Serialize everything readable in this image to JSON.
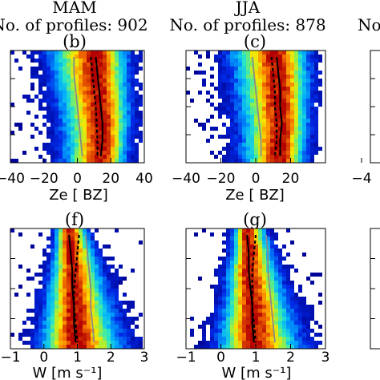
{
  "panel_titles": {
    "mam_season": "MAM",
    "mam_profiles": "No. of profiles: 902",
    "jja_season": "JJA",
    "jja_profiles": "No. of profiles: 878",
    "right_fragment": "No"
  },
  "chart_data": [
    {
      "type": "heatmap",
      "panel_label": "(b)",
      "xlabel": "Ze [ BZ]",
      "xlim": [
        -40,
        40
      ],
      "xticks": [
        "−40",
        "−20",
        "0",
        "20",
        "40"
      ],
      "lines": [
        {
          "style": "solid black",
          "x": [
            11,
            12,
            13,
            14,
            15,
            15,
            14
          ]
        },
        {
          "style": "dashed black",
          "x": [
            8,
            9,
            10,
            11,
            11.5,
            12,
            12
          ]
        },
        {
          "style": "solid grey",
          "x": [
            -2,
            -2,
            -1,
            0,
            1,
            2,
            3
          ]
        }
      ]
    },
    {
      "type": "heatmap",
      "panel_label": "(c)",
      "xlabel": "Ze [ BZ]",
      "xlim": [
        -40,
        40
      ],
      "xticks": [
        "−40",
        "−20",
        "0",
        "20"
      ],
      "lines": [
        {
          "style": "solid black",
          "x": [
            12,
            13,
            14,
            14,
            15,
            14,
            14
          ]
        },
        {
          "style": "dashed black",
          "x": [
            9,
            10,
            11,
            11,
            12,
            12,
            11
          ]
        },
        {
          "style": "solid grey",
          "x": [
            -2,
            -1,
            0,
            1,
            2,
            3,
            3
          ]
        }
      ]
    },
    {
      "type": "heatmap",
      "panel_label": "",
      "xlabel": "",
      "xlim": [
        -40,
        40
      ],
      "xticks": [
        "−4"
      ]
    },
    {
      "type": "heatmap",
      "panel_label": "(f)",
      "xlabel": "W [m s⁻¹]",
      "xlim": [
        -1,
        3
      ],
      "xticks": [
        "−1",
        "0",
        "1",
        "2",
        "3"
      ],
      "lines": [
        {
          "style": "solid black",
          "x": [
            0.75,
            0.8,
            0.85,
            0.85,
            0.9,
            0.9,
            0.95
          ]
        },
        {
          "style": "dashed black",
          "x": [
            1.05,
            1.0,
            0.95,
            0.9,
            0.9,
            0.95,
            1.0
          ]
        },
        {
          "style": "solid grey",
          "x": [
            1.25,
            1.3,
            1.35,
            1.4,
            1.4,
            1.45,
            1.5
          ]
        }
      ]
    },
    {
      "type": "heatmap",
      "panel_label": "(g)",
      "xlabel": "W [m s⁻¹]",
      "xlim": [
        -1,
        3
      ],
      "xticks": [
        "−1",
        "0",
        "1",
        "2",
        "3"
      ],
      "lines": [
        {
          "style": "solid black",
          "x": [
            0.75,
            0.8,
            0.8,
            0.85,
            0.9,
            0.9,
            0.95
          ]
        },
        {
          "style": "dashed black",
          "x": [
            1.0,
            0.95,
            0.9,
            0.9,
            0.9,
            0.95,
            1.0
          ]
        },
        {
          "style": "solid grey",
          "x": [
            1.3,
            1.35,
            1.35,
            1.4,
            1.45,
            1.5,
            1.55
          ]
        }
      ]
    },
    {
      "type": "heatmap",
      "panel_label": "",
      "xlabel": "",
      "xlim": [
        -1,
        3
      ]
    }
  ]
}
